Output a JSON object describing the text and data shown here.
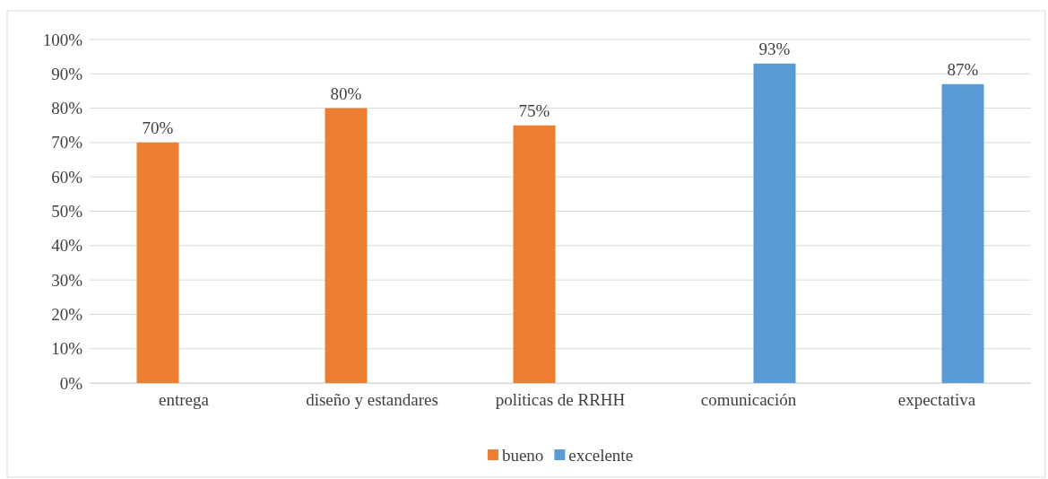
{
  "chart_data": {
    "type": "bar",
    "categories": [
      "entrega",
      "diseño y estandares",
      "politicas de RRHH",
      "comunicación",
      "expectativa"
    ],
    "series": [
      {
        "name": "bueno",
        "color": "#ed7d31",
        "values": [
          70,
          80,
          75,
          null,
          null
        ],
        "value_labels": [
          "70%",
          "80%",
          "75%",
          null,
          null
        ]
      },
      {
        "name": "excelente",
        "color": "#5b9bd5",
        "values": [
          null,
          null,
          null,
          93,
          87
        ],
        "value_labels": [
          null,
          null,
          null,
          "93%",
          "87%"
        ]
      }
    ],
    "ylim": [
      0,
      100
    ],
    "yticks": [
      {
        "value": 0,
        "label": "0%"
      },
      {
        "value": 10,
        "label": "10%"
      },
      {
        "value": 20,
        "label": "20%"
      },
      {
        "value": 30,
        "label": "30%"
      },
      {
        "value": 40,
        "label": "40%"
      },
      {
        "value": 50,
        "label": "50%"
      },
      {
        "value": 60,
        "label": "60%"
      },
      {
        "value": 70,
        "label": "70%"
      },
      {
        "value": 80,
        "label": "80%"
      },
      {
        "value": 90,
        "label": "90%"
      },
      {
        "value": 100,
        "label": "100%"
      }
    ],
    "grid": "y",
    "legend": "bottom"
  }
}
